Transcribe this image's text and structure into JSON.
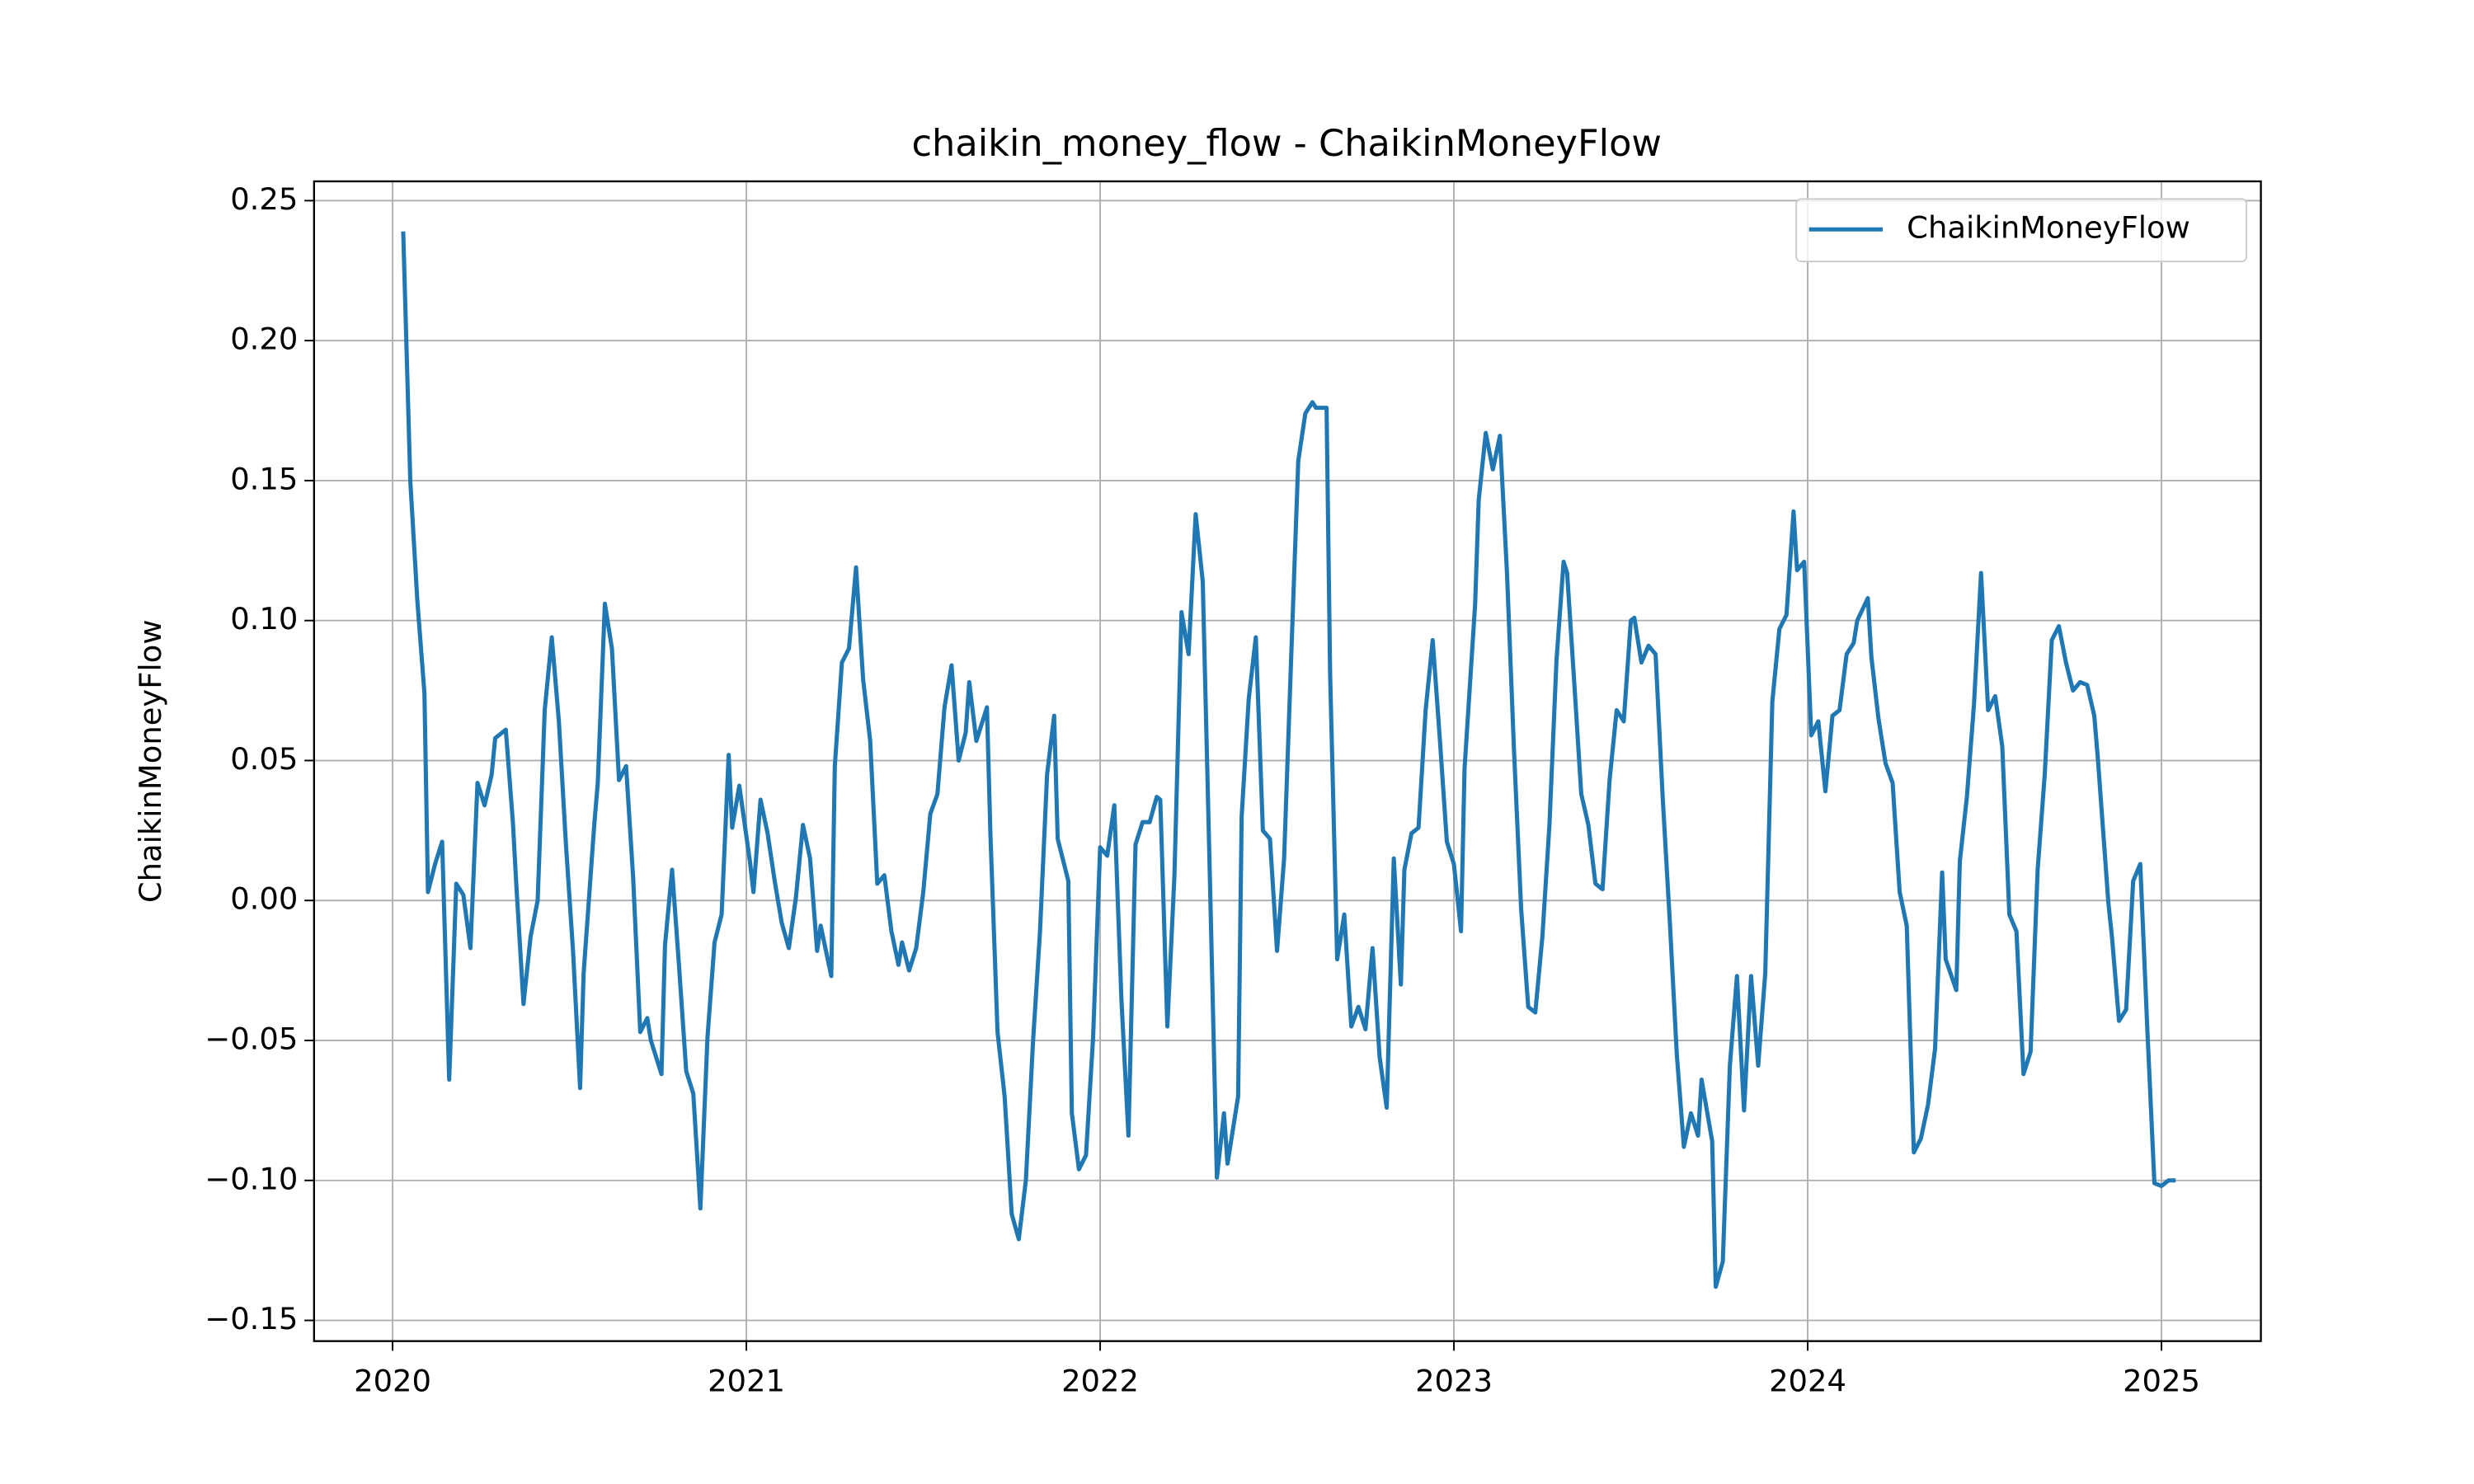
{
  "chart_data": {
    "type": "line",
    "title": "chaikin_money_flow - ChaikinMoneyFlow",
    "y_label": "ChaikinMoneyFlow",
    "xlim": [
      2019.778,
      2025.281
    ],
    "xticks": [
      2020,
      2021,
      2022,
      2023,
      2024,
      2025
    ],
    "ylim": [
      -0.1574,
      0.2569
    ],
    "yticks": [
      {
        "value": 0.25,
        "label": "0.25"
      },
      {
        "value": 0.2,
        "label": "0.20"
      },
      {
        "value": 0.15,
        "label": "0.15"
      },
      {
        "value": 0.1,
        "label": "0.10"
      },
      {
        "value": 0.05,
        "label": "0.05"
      },
      {
        "value": 0,
        "label": "0.00"
      },
      {
        "value": -0.05,
        "label": "−0.05"
      },
      {
        "value": -0.1,
        "label": "−0.10"
      },
      {
        "value": -0.15,
        "label": "−0.15"
      }
    ],
    "grid": true,
    "legend": "upper right",
    "x": [
      2020.03,
      2020.05,
      2020.07,
      2020.09,
      2020.1,
      2020.12,
      2020.14,
      2020.16,
      2020.18,
      2020.2,
      2020.22,
      2020.24,
      2020.26,
      2020.28,
      2020.29,
      2020.32,
      2020.34,
      2020.35,
      2020.37,
      2020.39,
      2020.41,
      2020.43,
      2020.45,
      2020.47,
      2020.49,
      2020.51,
      2020.53,
      2020.54,
      2020.57,
      2020.58,
      2020.6,
      2020.62,
      2020.64,
      2020.66,
      2020.68,
      2020.7,
      2020.72,
      2020.73,
      2020.76,
      2020.77,
      2020.79,
      2020.81,
      2020.83,
      2020.85,
      2020.87,
      2020.89,
      2020.91,
      2020.93,
      2020.95,
      2020.96,
      2020.98,
      2021.01,
      2021.02,
      2021.04,
      2021.06,
      2021.08,
      2021.1,
      2021.12,
      2021.14,
      2021.16,
      2021.18,
      2021.2,
      2021.21,
      2021.24,
      2021.25,
      2021.27,
      2021.29,
      2021.31,
      2021.33,
      2021.35,
      2021.37,
      2021.39,
      2021.41,
      2021.43,
      2021.44,
      2021.46,
      2021.48,
      2021.5,
      2021.52,
      2021.54,
      2021.56,
      2021.58,
      2021.6,
      2021.62,
      2021.63,
      2021.65,
      2021.68,
      2021.69,
      2021.71,
      2021.73,
      2021.75,
      2021.77,
      2021.79,
      2021.81,
      2021.83,
      2021.85,
      2021.87,
      2021.88,
      2021.91,
      2021.92,
      2021.94,
      2021.96,
      2021.98,
      2022.0,
      2022.02,
      2022.04,
      2022.06,
      2022.08,
      2022.1,
      2022.12,
      2022.14,
      2022.16,
      2022.17,
      2022.19,
      2022.21,
      2022.23,
      2022.25,
      2022.27,
      2022.29,
      2022.31,
      2022.33,
      2022.35,
      2022.36,
      2022.39,
      2022.4,
      2022.42,
      2022.44,
      2022.46,
      2022.48,
      2022.5,
      2022.52,
      2022.54,
      2022.56,
      2022.58,
      2022.6,
      2022.61,
      2022.64,
      2022.65,
      2022.67,
      2022.69,
      2022.71,
      2022.73,
      2022.75,
      2022.77,
      2022.79,
      2022.81,
      2022.83,
      2022.85,
      2022.86,
      2022.88,
      2022.9,
      2022.92,
      2022.94,
      2022.96,
      2022.98,
      2023.0,
      2023.02,
      2023.03,
      2023.06,
      2023.07,
      2023.09,
      2023.11,
      2023.13,
      2023.15,
      2023.17,
      2023.19,
      2023.21,
      2023.23,
      2023.25,
      2023.27,
      2023.29,
      2023.31,
      2023.32,
      2023.34,
      2023.36,
      2023.38,
      2023.4,
      2023.42,
      2023.44,
      2023.46,
      2023.48,
      2023.5,
      2023.51,
      2023.53,
      2023.55,
      2023.57,
      2023.59,
      2023.61,
      2023.63,
      2023.65,
      2023.67,
      2023.69,
      2023.7,
      2023.73,
      2023.74,
      2023.76,
      2023.78,
      2023.8,
      2023.82,
      2023.84,
      2023.86,
      2023.88,
      2023.9,
      2023.92,
      2023.94,
      2023.96,
      2023.97,
      2023.99,
      2024.01,
      2024.03,
      2024.05,
      2024.07,
      2024.09,
      2024.11,
      2024.13,
      2024.14,
      2024.17,
      2024.18,
      2024.2,
      2024.22,
      2024.24,
      2024.26,
      2024.28,
      2024.3,
      2024.32,
      2024.34,
      2024.36,
      2024.38,
      2024.39,
      2024.42,
      2024.43,
      2024.45,
      2024.47,
      2024.49,
      2024.51,
      2024.53,
      2024.55,
      2024.57,
      2024.59,
      2024.61,
      2024.63,
      2024.65,
      2024.67,
      2024.69,
      2024.71,
      2024.73,
      2024.75,
      2024.77,
      2024.79,
      2024.81,
      2024.82,
      2024.85,
      2024.86,
      2024.88,
      2024.9,
      2024.92,
      2024.94,
      2024.96,
      2024.98,
      2025.0,
      2025.02,
      2025.04
    ],
    "series": [
      {
        "name": "ChaikinMoneyFlow",
        "color": "#1f77b4",
        "values": [
          0.239,
          0.15,
          0.107,
          0.074,
          0.003,
          0.013,
          0.021,
          -0.064,
          0.006,
          0.002,
          -0.017,
          0.042,
          0.034,
          0.045,
          0.058,
          0.061,
          0.028,
          0.005,
          -0.037,
          -0.013,
          0.0,
          0.068,
          0.094,
          0.064,
          0.02,
          -0.018,
          -0.067,
          -0.026,
          0.027,
          0.042,
          0.106,
          0.09,
          0.043,
          0.048,
          0.008,
          -0.047,
          -0.042,
          -0.05,
          -0.062,
          -0.016,
          0.011,
          -0.024,
          -0.061,
          -0.069,
          -0.11,
          -0.049,
          -0.015,
          -0.005,
          0.052,
          0.026,
          0.041,
          0.014,
          0.003,
          0.036,
          0.024,
          0.007,
          -0.008,
          -0.017,
          0.001,
          0.027,
          0.015,
          -0.018,
          -0.009,
          -0.027,
          0.048,
          0.085,
          0.09,
          0.119,
          0.079,
          0.057,
          0.006,
          0.009,
          -0.011,
          -0.023,
          -0.015,
          -0.025,
          -0.017,
          0.003,
          0.031,
          0.038,
          0.069,
          0.084,
          0.05,
          0.06,
          0.078,
          0.057,
          0.069,
          0.023,
          -0.047,
          -0.07,
          -0.112,
          -0.121,
          -0.1,
          -0.051,
          -0.011,
          0.045,
          0.066,
          0.022,
          0.007,
          -0.076,
          -0.096,
          -0.091,
          -0.049,
          0.019,
          0.016,
          0.034,
          -0.035,
          -0.084,
          0.02,
          0.028,
          0.028,
          0.037,
          0.036,
          -0.045,
          0.009,
          0.103,
          0.088,
          0.138,
          0.114,
          0.009,
          -0.099,
          -0.076,
          -0.094,
          -0.07,
          0.03,
          0.072,
          0.094,
          0.025,
          0.022,
          -0.018,
          0.015,
          0.087,
          0.157,
          0.174,
          0.178,
          0.176,
          0.176,
          0.081,
          -0.021,
          -0.005,
          -0.045,
          -0.038,
          -0.046,
          -0.017,
          -0.056,
          -0.074,
          0.015,
          -0.03,
          0.011,
          0.024,
          0.026,
          0.068,
          0.093,
          0.058,
          0.021,
          0.013,
          -0.011,
          0.047,
          0.106,
          0.143,
          0.167,
          0.154,
          0.166,
          0.117,
          0.053,
          -0.003,
          -0.038,
          -0.04,
          -0.013,
          0.027,
          0.086,
          0.121,
          0.117,
          0.078,
          0.038,
          0.027,
          0.006,
          0.004,
          0.043,
          0.068,
          0.064,
          0.1,
          0.101,
          0.085,
          0.091,
          0.088,
          0.037,
          -0.007,
          -0.055,
          -0.088,
          -0.076,
          -0.084,
          -0.064,
          -0.086,
          -0.138,
          -0.129,
          -0.059,
          -0.027,
          -0.075,
          -0.027,
          -0.059,
          -0.026,
          0.071,
          0.097,
          0.102,
          0.139,
          0.118,
          0.121,
          0.059,
          0.064,
          0.039,
          0.066,
          0.068,
          0.088,
          0.092,
          0.1,
          0.108,
          0.087,
          0.065,
          0.049,
          0.042,
          0.003,
          -0.009,
          -0.09,
          -0.085,
          -0.073,
          -0.053,
          0.01,
          -0.021,
          -0.032,
          0.014,
          0.037,
          0.07,
          0.117,
          0.068,
          0.073,
          0.055,
          -0.005,
          -0.011,
          -0.062,
          -0.054,
          0.011,
          0.045,
          0.093,
          0.098,
          0.085,
          0.075,
          0.078,
          0.077,
          0.066,
          0.051,
          -0.001,
          -0.013,
          -0.043,
          -0.039,
          0.007,
          0.013,
          -0.046,
          -0.101,
          -0.102,
          -0.1,
          -0.1
        ]
      }
    ]
  }
}
